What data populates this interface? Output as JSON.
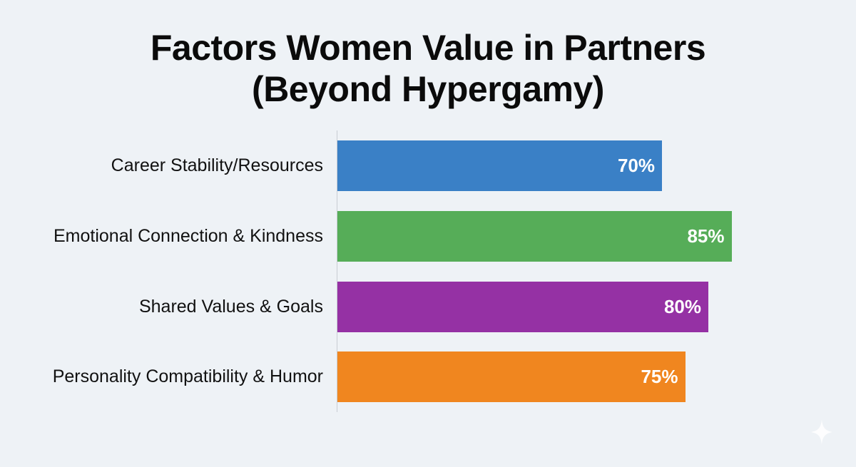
{
  "chart_data": {
    "type": "bar",
    "orientation": "horizontal",
    "title": "Factors Women Value in Partners (Beyond Hypergamy)",
    "title_lines": [
      "Factors Women Value in Partners",
      "(Beyond Hypergamy)"
    ],
    "categories": [
      "Career Stability/Resources",
      "Emotional Connection & Kindness",
      "Shared Values & Goals",
      "Personality Compatibility & Humor"
    ],
    "values": [
      70,
      85,
      80,
      75
    ],
    "value_labels": [
      "70%",
      "85%",
      "80%",
      "75%"
    ],
    "colors": [
      "#3a80c6",
      "#56ad58",
      "#9531a4",
      "#f0861f"
    ],
    "xlabel": "",
    "ylabel": "",
    "xlim": [
      0,
      100
    ],
    "grid": false,
    "legend": null,
    "unit": "%"
  },
  "background_color": "#eef2f6",
  "watermark": {
    "icon": "sparkle-icon"
  }
}
